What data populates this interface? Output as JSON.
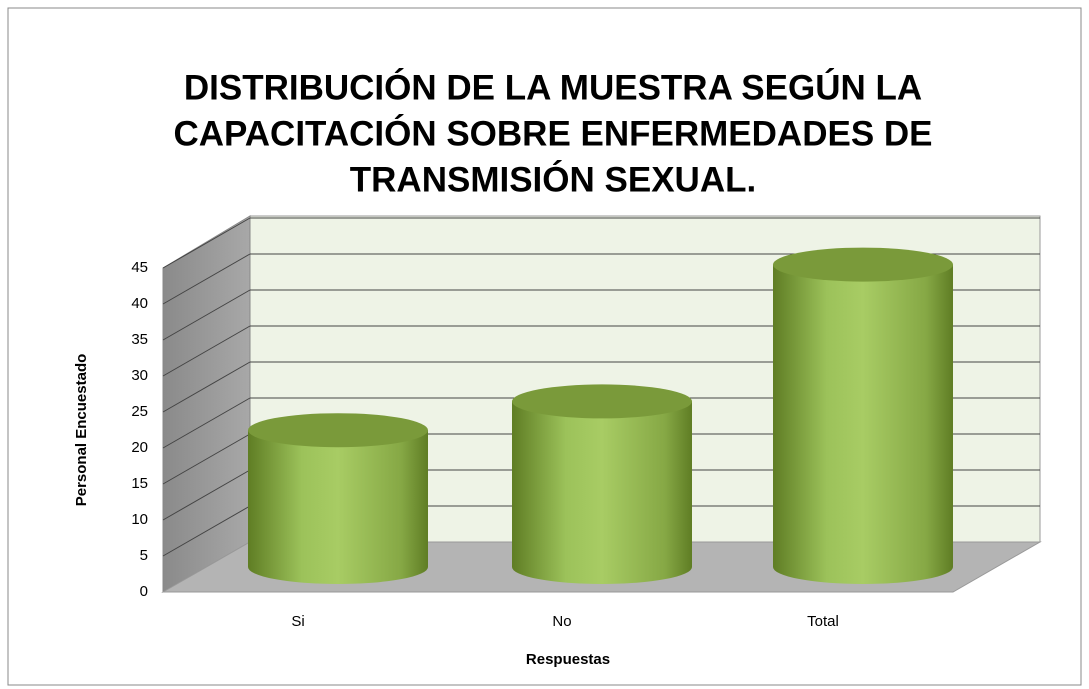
{
  "chart_data": {
    "type": "bar3d-cylinder",
    "title": [
      "DISTRIBUCIÓN DE LA MUESTRA SEGÚN LA",
      "CAPACITACIÓN SOBRE ENFERMEDADES DE",
      "TRANSMISIÓN SEXUAL."
    ],
    "x_label": "Respuestas",
    "y_label": "Personal Encuestado",
    "categories": [
      "Si",
      "No",
      "Total"
    ],
    "values": [
      19,
      23,
      42
    ],
    "color": "#9bbb59",
    "ylim": [
      0,
      45
    ],
    "yticks": [
      0,
      5,
      10,
      15,
      20,
      25,
      30,
      35,
      40,
      45
    ],
    "grid": true
  }
}
